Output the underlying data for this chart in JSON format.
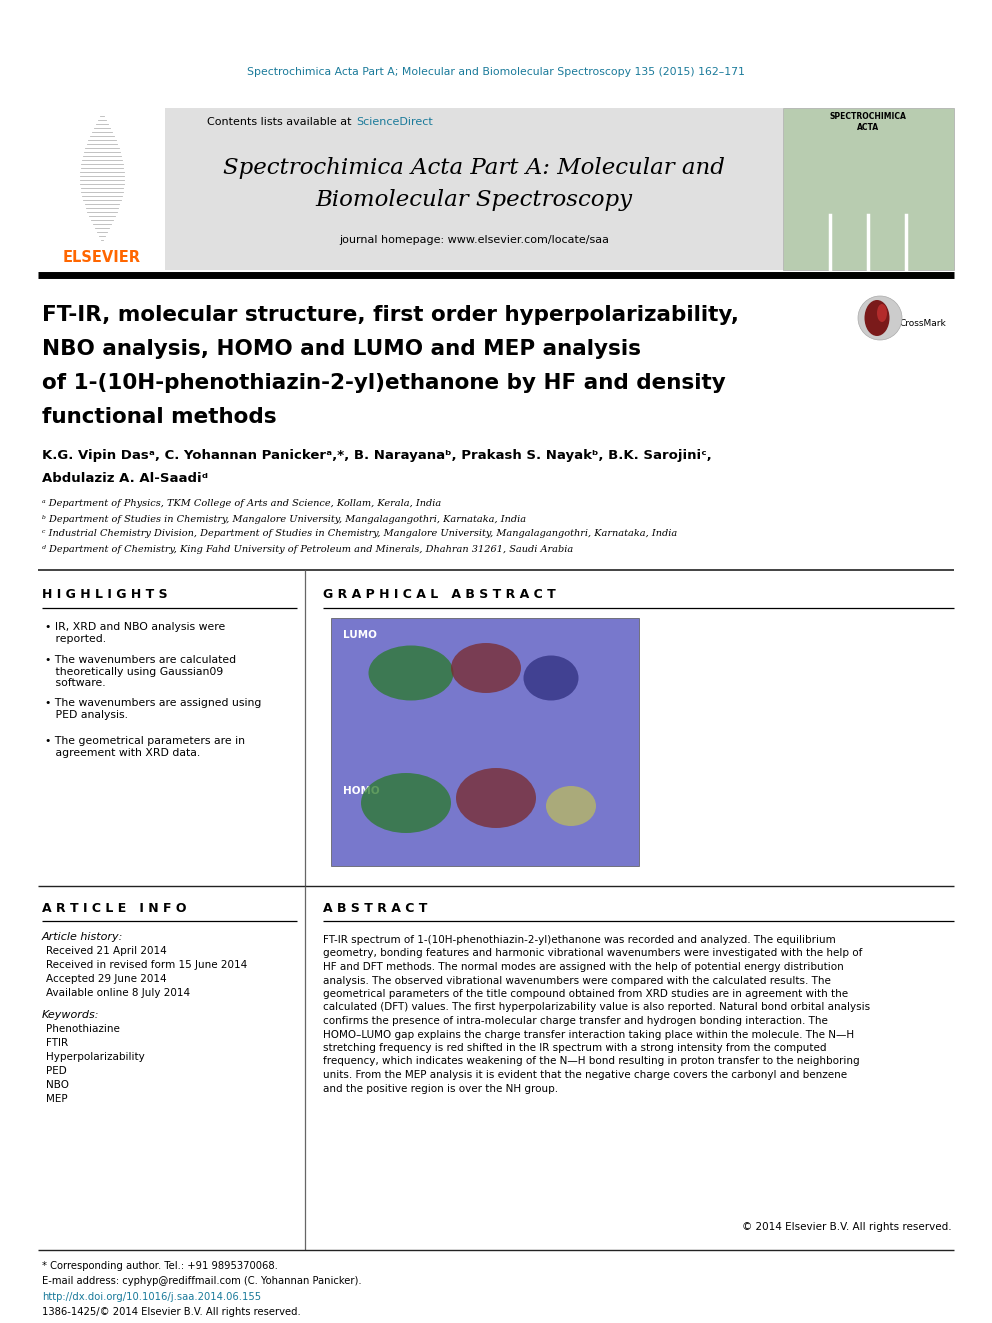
{
  "top_journal_line": "Spectrochimica Acta Part A; Molecular and Biomolecular Spectroscopy 135 (2015) 162–171",
  "journal_name_line1": "Spectrochimica Acta Part A: Molecular and",
  "journal_name_line2": "Biomolecular Spectroscopy",
  "journal_homepage": "journal homepage: www.elsevier.com/locate/saa",
  "contents_pre": "Contents lists available at ",
  "contents_link": "ScienceDirect",
  "article_title_line1": "FT-IR, molecular structure, first order hyperpolarizability,",
  "article_title_line2": "NBO analysis, HOMO and LUMO and MEP analysis",
  "article_title_line3": "of 1-(10H-phenothiazin-2-yl)ethanone by HF and density",
  "article_title_line4": "functional methods",
  "author_line1": "K.G. Vipin Dasᵃ, C. Yohannan Panickerᵃ,*, B. Narayanaᵇ, Prakash S. Nayakᵇ, B.K. Sarojiniᶜ,",
  "author_line2": "Abdulaziz A. Al-Saadiᵈ",
  "affil_a": "ᵃ Department of Physics, TKM College of Arts and Science, Kollam, Kerala, India",
  "affil_b": "ᵇ Department of Studies in Chemistry, Mangalore University, Mangalagangothri, Karnataka, India",
  "affil_c": "ᶜ Industrial Chemistry Division, Department of Studies in Chemistry, Mangalore University, Mangalagangothri, Karnataka, India",
  "affil_d": "ᵈ Department of Chemistry, King Fahd University of Petroleum and Minerals, Dhahran 31261, Saudi Arabia",
  "highlights_title": "H I G H L I G H T S",
  "hl1": "• IR, XRD and NBO analysis were\n   reported.",
  "hl2": "• The wavenumbers are calculated\n   theoretically using Gaussian09\n   software.",
  "hl3": "• The wavenumbers are assigned using\n   PED analysis.",
  "hl4": "• The geometrical parameters are in\n   agreement with XRD data.",
  "graphical_abstract_title": "G R A P H I C A L   A B S T R A C T",
  "article_info_title": "A R T I C L E   I N F O",
  "article_history_title": "Article history:",
  "received": "Received 21 April 2014",
  "received_revised": "Received in revised form 15 June 2014",
  "accepted": "Accepted 29 June 2014",
  "available": "Available online 8 July 2014",
  "keywords_title": "Keywords:",
  "keywords": [
    "Phenothiazine",
    "FTIR",
    "Hyperpolarizability",
    "PED",
    "NBO",
    "MEP"
  ],
  "abstract_title": "A B S T R A C T",
  "abstract_lines": [
    "FT-IR spectrum of 1-(10H-phenothiazin-2-yl)ethanone was recorded and analyzed. The equilibrium",
    "geometry, bonding features and harmonic vibrational wavenumbers were investigated with the help of",
    "HF and DFT methods. The normal modes are assigned with the help of potential energy distribution",
    "analysis. The observed vibrational wavenumbers were compared with the calculated results. The",
    "geometrical parameters of the title compound obtained from XRD studies are in agreement with the",
    "calculated (DFT) values. The first hyperpolarizability value is also reported. Natural bond orbital analysis",
    "confirms the presence of intra-molecular charge transfer and hydrogen bonding interaction. The",
    "HOMO–LUMO gap explains the charge transfer interaction taking place within the molecule. The N—H",
    "stretching frequency is red shifted in the IR spectrum with a strong intensity from the computed",
    "frequency, which indicates weakening of the N—H bond resulting in proton transfer to the neighboring",
    "units. From the MEP analysis it is evident that the negative charge covers the carbonyl and benzene",
    "and the positive region is over the NH group."
  ],
  "copyright": "© 2014 Elsevier B.V. All rights reserved.",
  "footer_star": "* Corresponding author. Tel.: +91 9895370068.",
  "footer_email": "E-mail address: cyphyp@rediffmail.com (C. Yohannan Panicker).",
  "footer_doi": "http://dx.doi.org/10.1016/j.saa.2014.06.155",
  "footer_issn": "1386-1425/© 2014 Elsevier B.V. All rights reserved.",
  "elsevier_color": "#FF6600",
  "teal_color": "#1a7a9a",
  "header_bg": "#e0e0e0",
  "black": "#000000",
  "white": "#ffffff",
  "dark_line": "#222222",
  "mid_gray": "#666666",
  "cover_green": "#b8ccb0"
}
